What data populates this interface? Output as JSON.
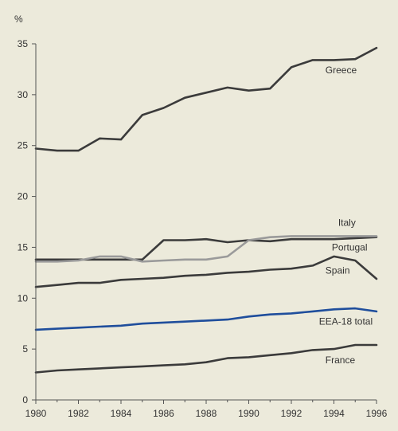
{
  "chart_data": {
    "type": "line",
    "title": "",
    "xlabel": "",
    "ylabel": "%",
    "xlim": [
      1980,
      1996
    ],
    "ylim": [
      0,
      35
    ],
    "x_ticks": [
      1980,
      1982,
      1984,
      1986,
      1988,
      1990,
      1992,
      1994,
      1996
    ],
    "y_ticks": [
      0,
      5,
      10,
      15,
      20,
      25,
      30,
      35
    ],
    "grid": false,
    "legend": "inline labels at line ends",
    "x": [
      1980,
      1981,
      1982,
      1983,
      1984,
      1985,
      1986,
      1987,
      1988,
      1989,
      1990,
      1991,
      1992,
      1993,
      1994,
      1995,
      1996
    ],
    "series": [
      {
        "name": "Greece",
        "color": "#3b3b3b",
        "values": [
          24.7,
          24.5,
          24.5,
          25.7,
          25.6,
          28.0,
          28.7,
          29.7,
          30.2,
          30.7,
          30.4,
          30.6,
          32.7,
          33.4,
          33.4,
          33.5,
          34.6
        ]
      },
      {
        "name": "Italy",
        "color": "#3b3b3b",
        "values": [
          13.8,
          13.8,
          13.8,
          13.8,
          13.8,
          13.8,
          15.7,
          15.7,
          15.8,
          15.5,
          15.7,
          15.6,
          15.8,
          15.8,
          15.8,
          15.9,
          16.0
        ]
      },
      {
        "name": "Portugal",
        "color": "#9a9a9a",
        "values": [
          13.6,
          13.6,
          13.7,
          14.1,
          14.1,
          13.6,
          13.7,
          13.8,
          13.8,
          14.1,
          15.7,
          16.0,
          16.1,
          16.1,
          16.1,
          16.1,
          16.1
        ]
      },
      {
        "name": "Spain",
        "color": "#3b3b3b",
        "values": [
          11.1,
          11.3,
          11.5,
          11.5,
          11.8,
          11.9,
          12.0,
          12.2,
          12.3,
          12.5,
          12.6,
          12.8,
          12.9,
          13.2,
          14.1,
          13.7,
          11.9
        ]
      },
      {
        "name": "EEA-18 total",
        "color": "#1f4e9c",
        "values": [
          6.9,
          7.0,
          7.1,
          7.2,
          7.3,
          7.5,
          7.6,
          7.7,
          7.8,
          7.9,
          8.2,
          8.4,
          8.5,
          8.7,
          8.9,
          9.0,
          8.7
        ]
      },
      {
        "name": "France",
        "color": "#3b3b3b",
        "values": [
          2.7,
          2.9,
          3.0,
          3.1,
          3.2,
          3.3,
          3.4,
          3.5,
          3.7,
          4.1,
          4.2,
          4.4,
          4.6,
          4.9,
          5.0,
          5.4,
          5.4
        ]
      }
    ],
    "series_label_anchor": [
      {
        "name": "Greece",
        "x": 1993.6,
        "y": 32.1
      },
      {
        "name": "Italy",
        "x": 1994.2,
        "y": 17.1
      },
      {
        "name": "Portugal",
        "x": 1993.9,
        "y": 14.7
      },
      {
        "name": "Spain",
        "x": 1993.6,
        "y": 12.4
      },
      {
        "name": "EEA-18 total",
        "x": 1993.3,
        "y": 7.4
      },
      {
        "name": "France",
        "x": 1993.6,
        "y": 3.6
      }
    ]
  }
}
